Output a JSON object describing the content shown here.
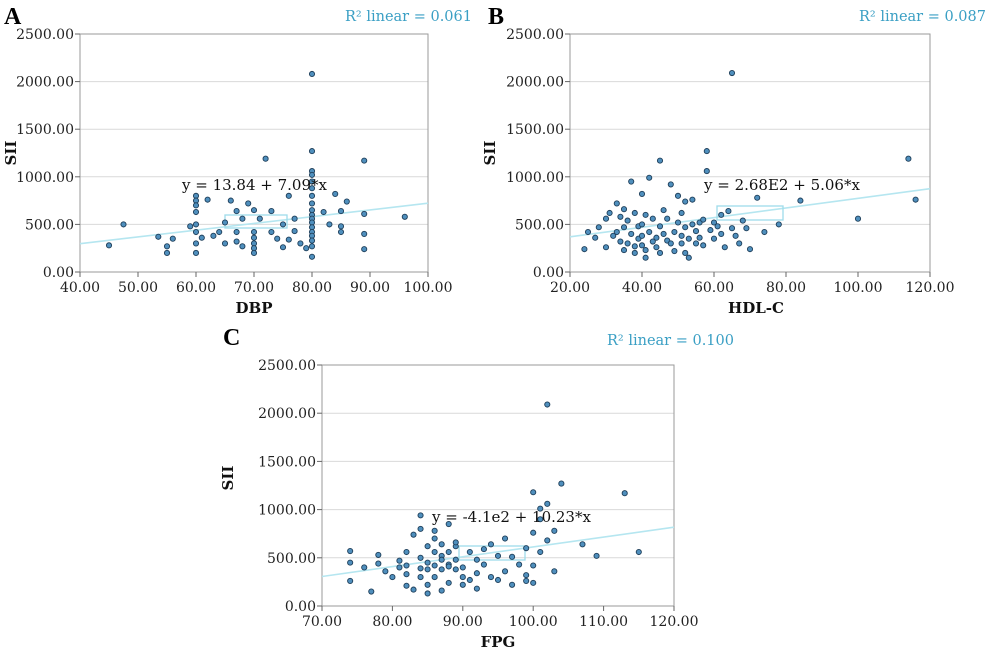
{
  "chart_data": [
    {
      "type": "scatter",
      "panel_label": "A",
      "xlabel": "DBP",
      "ylabel": "SII",
      "r2_label": "R² linear = 0.061",
      "equation": "y = 13.84 + 7.09*x",
      "fit": {
        "intercept": 13.84,
        "slope": 7.09
      },
      "xlim": [
        40,
        100
      ],
      "ylim": [
        0,
        2500
      ],
      "xticks": [
        "40.00",
        "50.00",
        "60.00",
        "70.00",
        "80.00",
        "90.00",
        "100.00"
      ],
      "yticks": [
        "0.00",
        "500.00",
        "1000.00",
        "1500.00",
        "2000.00",
        "2500.00"
      ],
      "points": [
        [
          45,
          280
        ],
        [
          47.5,
          500
        ],
        [
          53.5,
          370
        ],
        [
          55,
          270
        ],
        [
          55,
          200
        ],
        [
          56,
          350
        ],
        [
          59,
          480
        ],
        [
          60,
          800
        ],
        [
          60,
          750
        ],
        [
          60,
          700
        ],
        [
          60,
          630
        ],
        [
          60,
          500
        ],
        [
          60,
          420
        ],
        [
          60,
          300
        ],
        [
          60,
          200
        ],
        [
          61,
          360
        ],
        [
          62,
          760
        ],
        [
          63,
          380
        ],
        [
          64,
          420
        ],
        [
          65,
          520
        ],
        [
          65,
          300
        ],
        [
          66,
          750
        ],
        [
          67,
          640
        ],
        [
          67,
          420
        ],
        [
          67,
          320
        ],
        [
          68,
          270
        ],
        [
          68,
          560
        ],
        [
          69,
          720
        ],
        [
          70,
          650
        ],
        [
          70,
          420
        ],
        [
          70,
          360
        ],
        [
          70,
          300
        ],
        [
          70,
          250
        ],
        [
          70,
          200
        ],
        [
          71,
          560
        ],
        [
          72,
          1190
        ],
        [
          73,
          640
        ],
        [
          73,
          420
        ],
        [
          74,
          350
        ],
        [
          75,
          260
        ],
        [
          75,
          500
        ],
        [
          76,
          800
        ],
        [
          76,
          340
        ],
        [
          77,
          560
        ],
        [
          77,
          430
        ],
        [
          78,
          300
        ],
        [
          79,
          250
        ],
        [
          80,
          2080
        ],
        [
          80,
          1270
        ],
        [
          80,
          1060
        ],
        [
          80,
          1020
        ],
        [
          80,
          950
        ],
        [
          80,
          880
        ],
        [
          80,
          800
        ],
        [
          80,
          720
        ],
        [
          80,
          650
        ],
        [
          80,
          600
        ],
        [
          80,
          560
        ],
        [
          80,
          520
        ],
        [
          80,
          470
        ],
        [
          80,
          420
        ],
        [
          80,
          380
        ],
        [
          80,
          330
        ],
        [
          80,
          270
        ],
        [
          80,
          160
        ],
        [
          82,
          630
        ],
        [
          83,
          500
        ],
        [
          84,
          820
        ],
        [
          85,
          640
        ],
        [
          85,
          480
        ],
        [
          85,
          420
        ],
        [
          86,
          740
        ],
        [
          89,
          1170
        ],
        [
          89,
          610
        ],
        [
          89,
          400
        ],
        [
          89,
          240
        ],
        [
          96,
          580
        ]
      ]
    },
    {
      "type": "scatter",
      "panel_label": "B",
      "xlabel": "HDL-C",
      "ylabel": "SII",
      "r2_label": "R² linear = 0.087",
      "equation": "y = 2.68E2 + 5.06*x",
      "fit": {
        "intercept": 268,
        "slope": 5.06
      },
      "xlim": [
        20,
        120
      ],
      "ylim": [
        0,
        2500
      ],
      "xticks": [
        "20.00",
        "40.00",
        "60.00",
        "80.00",
        "100.00",
        "120.00"
      ],
      "yticks": [
        "0.00",
        "500.00",
        "1000.00",
        "1500.00",
        "2000.00",
        "2500.00"
      ],
      "points": [
        [
          24,
          240
        ],
        [
          25,
          420
        ],
        [
          27,
          360
        ],
        [
          28,
          470
        ],
        [
          30,
          260
        ],
        [
          30,
          560
        ],
        [
          31,
          620
        ],
        [
          32,
          380
        ],
        [
          33,
          720
        ],
        [
          33,
          420
        ],
        [
          34,
          320
        ],
        [
          34,
          580
        ],
        [
          35,
          660
        ],
        [
          35,
          470
        ],
        [
          35,
          230
        ],
        [
          36,
          540
        ],
        [
          36,
          300
        ],
        [
          37,
          950
        ],
        [
          37,
          400
        ],
        [
          38,
          270
        ],
        [
          38,
          620
        ],
        [
          38,
          200
        ],
        [
          39,
          480
        ],
        [
          39,
          350
        ],
        [
          40,
          820
        ],
        [
          40,
          500
        ],
        [
          40,
          380
        ],
        [
          40,
          280
        ],
        [
          41,
          230
        ],
        [
          41,
          600
        ],
        [
          41,
          150
        ],
        [
          42,
          420
        ],
        [
          42,
          990
        ],
        [
          43,
          560
        ],
        [
          43,
          320
        ],
        [
          44,
          360
        ],
        [
          44,
          260
        ],
        [
          45,
          1170
        ],
        [
          45,
          480
        ],
        [
          45,
          200
        ],
        [
          46,
          650
        ],
        [
          46,
          400
        ],
        [
          47,
          330
        ],
        [
          47,
          560
        ],
        [
          48,
          300
        ],
        [
          48,
          920
        ],
        [
          49,
          420
        ],
        [
          49,
          220
        ],
        [
          50,
          520
        ],
        [
          50,
          800
        ],
        [
          51,
          620
        ],
        [
          51,
          300
        ],
        [
          51,
          380
        ],
        [
          52,
          200
        ],
        [
          52,
          470
        ],
        [
          52,
          740
        ],
        [
          53,
          350
        ],
        [
          53,
          150
        ],
        [
          54,
          760
        ],
        [
          54,
          500
        ],
        [
          55,
          430
        ],
        [
          55,
          300
        ],
        [
          56,
          520
        ],
        [
          56,
          360
        ],
        [
          57,
          280
        ],
        [
          57,
          550
        ],
        [
          58,
          1270
        ],
        [
          58,
          1060
        ],
        [
          59,
          440
        ],
        [
          60,
          350
        ],
        [
          60,
          520
        ],
        [
          61,
          480
        ],
        [
          62,
          600
        ],
        [
          62,
          400
        ],
        [
          63,
          260
        ],
        [
          64,
          640
        ],
        [
          65,
          2090
        ],
        [
          65,
          460
        ],
        [
          66,
          380
        ],
        [
          67,
          300
        ],
        [
          68,
          540
        ],
        [
          69,
          460
        ],
        [
          70,
          240
        ],
        [
          72,
          780
        ],
        [
          74,
          420
        ],
        [
          78,
          500
        ],
        [
          84,
          750
        ],
        [
          100,
          560
        ],
        [
          114,
          1190
        ],
        [
          116,
          760
        ]
      ]
    },
    {
      "type": "scatter",
      "panel_label": "C",
      "xlabel": "FPG",
      "ylabel": "SII",
      "r2_label": "R² linear = 0.100",
      "equation": "y = -4.1e2 + 10.23*x",
      "fit": {
        "intercept": -410,
        "slope": 10.23
      },
      "xlim": [
        70,
        120
      ],
      "ylim": [
        0,
        2500
      ],
      "xticks": [
        "70.00",
        "80.00",
        "90.00",
        "100.00",
        "110.00",
        "120.00"
      ],
      "yticks": [
        "0.00",
        "500.00",
        "1000.00",
        "1500.00",
        "2000.00",
        "2500.00"
      ],
      "points": [
        [
          74,
          570
        ],
        [
          74,
          450
        ],
        [
          74,
          260
        ],
        [
          76,
          400
        ],
        [
          77,
          150
        ],
        [
          78,
          530
        ],
        [
          78,
          440
        ],
        [
          79,
          360
        ],
        [
          80,
          300
        ],
        [
          81,
          400
        ],
        [
          81,
          470
        ],
        [
          82,
          330
        ],
        [
          82,
          420
        ],
        [
          82,
          210
        ],
        [
          82,
          560
        ],
        [
          83,
          740
        ],
        [
          83,
          170
        ],
        [
          84,
          390
        ],
        [
          84,
          800
        ],
        [
          84,
          940
        ],
        [
          84,
          500
        ],
        [
          84,
          300
        ],
        [
          85,
          450
        ],
        [
          85,
          130
        ],
        [
          85,
          220
        ],
        [
          85,
          620
        ],
        [
          85,
          380
        ],
        [
          86,
          560
        ],
        [
          86,
          420
        ],
        [
          86,
          780
        ],
        [
          86,
          700
        ],
        [
          86,
          300
        ],
        [
          87,
          640
        ],
        [
          87,
          520
        ],
        [
          87,
          480
        ],
        [
          87,
          160
        ],
        [
          87,
          380
        ],
        [
          88,
          430
        ],
        [
          88,
          240
        ],
        [
          88,
          560
        ],
        [
          88,
          850
        ],
        [
          88,
          410
        ],
        [
          89,
          620
        ],
        [
          89,
          380
        ],
        [
          89,
          660
        ],
        [
          89,
          480
        ],
        [
          90,
          400
        ],
        [
          90,
          300
        ],
        [
          90,
          220
        ],
        [
          91,
          560
        ],
        [
          91,
          270
        ],
        [
          92,
          340
        ],
        [
          92,
          480
        ],
        [
          92,
          180
        ],
        [
          93,
          590
        ],
        [
          93,
          430
        ],
        [
          94,
          300
        ],
        [
          94,
          640
        ],
        [
          95,
          270
        ],
        [
          95,
          520
        ],
        [
          96,
          700
        ],
        [
          96,
          360
        ],
        [
          97,
          220
        ],
        [
          97,
          510
        ],
        [
          98,
          430
        ],
        [
          99,
          320
        ],
        [
          99,
          600
        ],
        [
          99,
          260
        ],
        [
          100,
          1180
        ],
        [
          100,
          240
        ],
        [
          100,
          760
        ],
        [
          100,
          420
        ],
        [
          101,
          1010
        ],
        [
          101,
          560
        ],
        [
          101,
          900
        ],
        [
          102,
          2090
        ],
        [
          102,
          1060
        ],
        [
          102,
          680
        ],
        [
          103,
          360
        ],
        [
          103,
          780
        ],
        [
          104,
          1270
        ],
        [
          107,
          640
        ],
        [
          109,
          520
        ],
        [
          113,
          1170
        ],
        [
          115,
          560
        ]
      ]
    }
  ]
}
